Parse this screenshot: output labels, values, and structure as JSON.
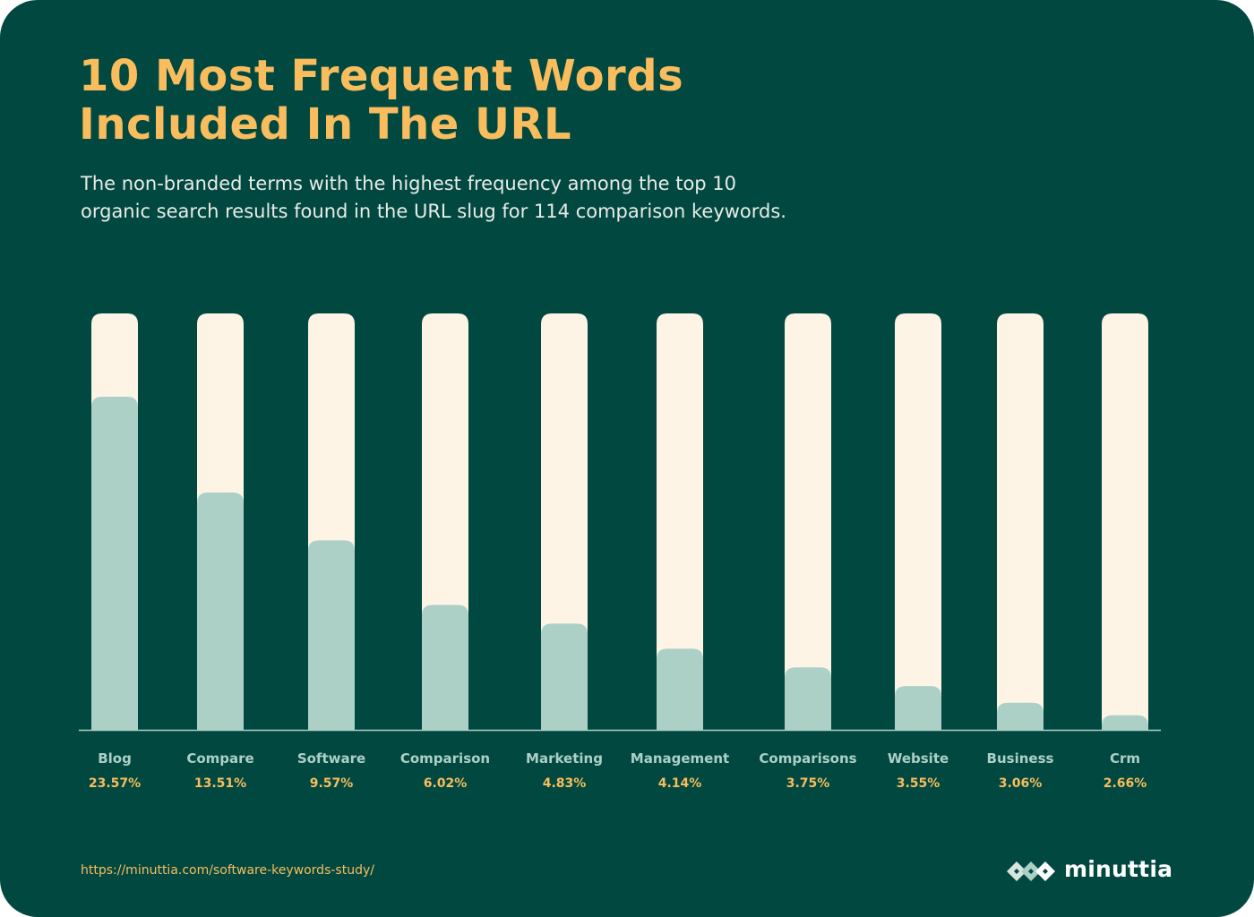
{
  "header": {
    "title_line1": "10 Most Frequent Words",
    "title_line2": "Included In The URL",
    "subtitle_line1": "The non-branded terms with the highest frequency among the top 10",
    "subtitle_line2": "organic search results found in the URL slug for 114 comparison keywords."
  },
  "colors": {
    "background": "#014841",
    "accent": "#f9bd5d",
    "track": "#fdf4e5",
    "fill": "#acd0c6",
    "label": "#acd0c6",
    "baseline": "#acd0c6"
  },
  "chart_data": {
    "type": "bar",
    "categories": [
      "Blog",
      "Compare",
      "Software",
      "Comparison",
      "Marketing",
      "Management",
      "Comparisons",
      "Website",
      "Business",
      "Crm"
    ],
    "value_labels": [
      "23.57%",
      "13.51%",
      "9.57%",
      "6.02%",
      "4.83%",
      "4.14%",
      "3.75%",
      "3.55%",
      "3.06%",
      "2.66%"
    ],
    "bar_fill_fraction": [
      0.8,
      0.57,
      0.455,
      0.3,
      0.255,
      0.195,
      0.15,
      0.105,
      0.065,
      0.035
    ],
    "title": "10 Most Frequent Words Included In The URL",
    "xlabel": "",
    "ylabel": "",
    "grid": false,
    "legend": "none"
  },
  "footer": {
    "url": "https://minuttia.com/software-keywords-study/",
    "brand": "minuttia",
    "logo_icon": "minuttia-diamond-logo-icon"
  }
}
